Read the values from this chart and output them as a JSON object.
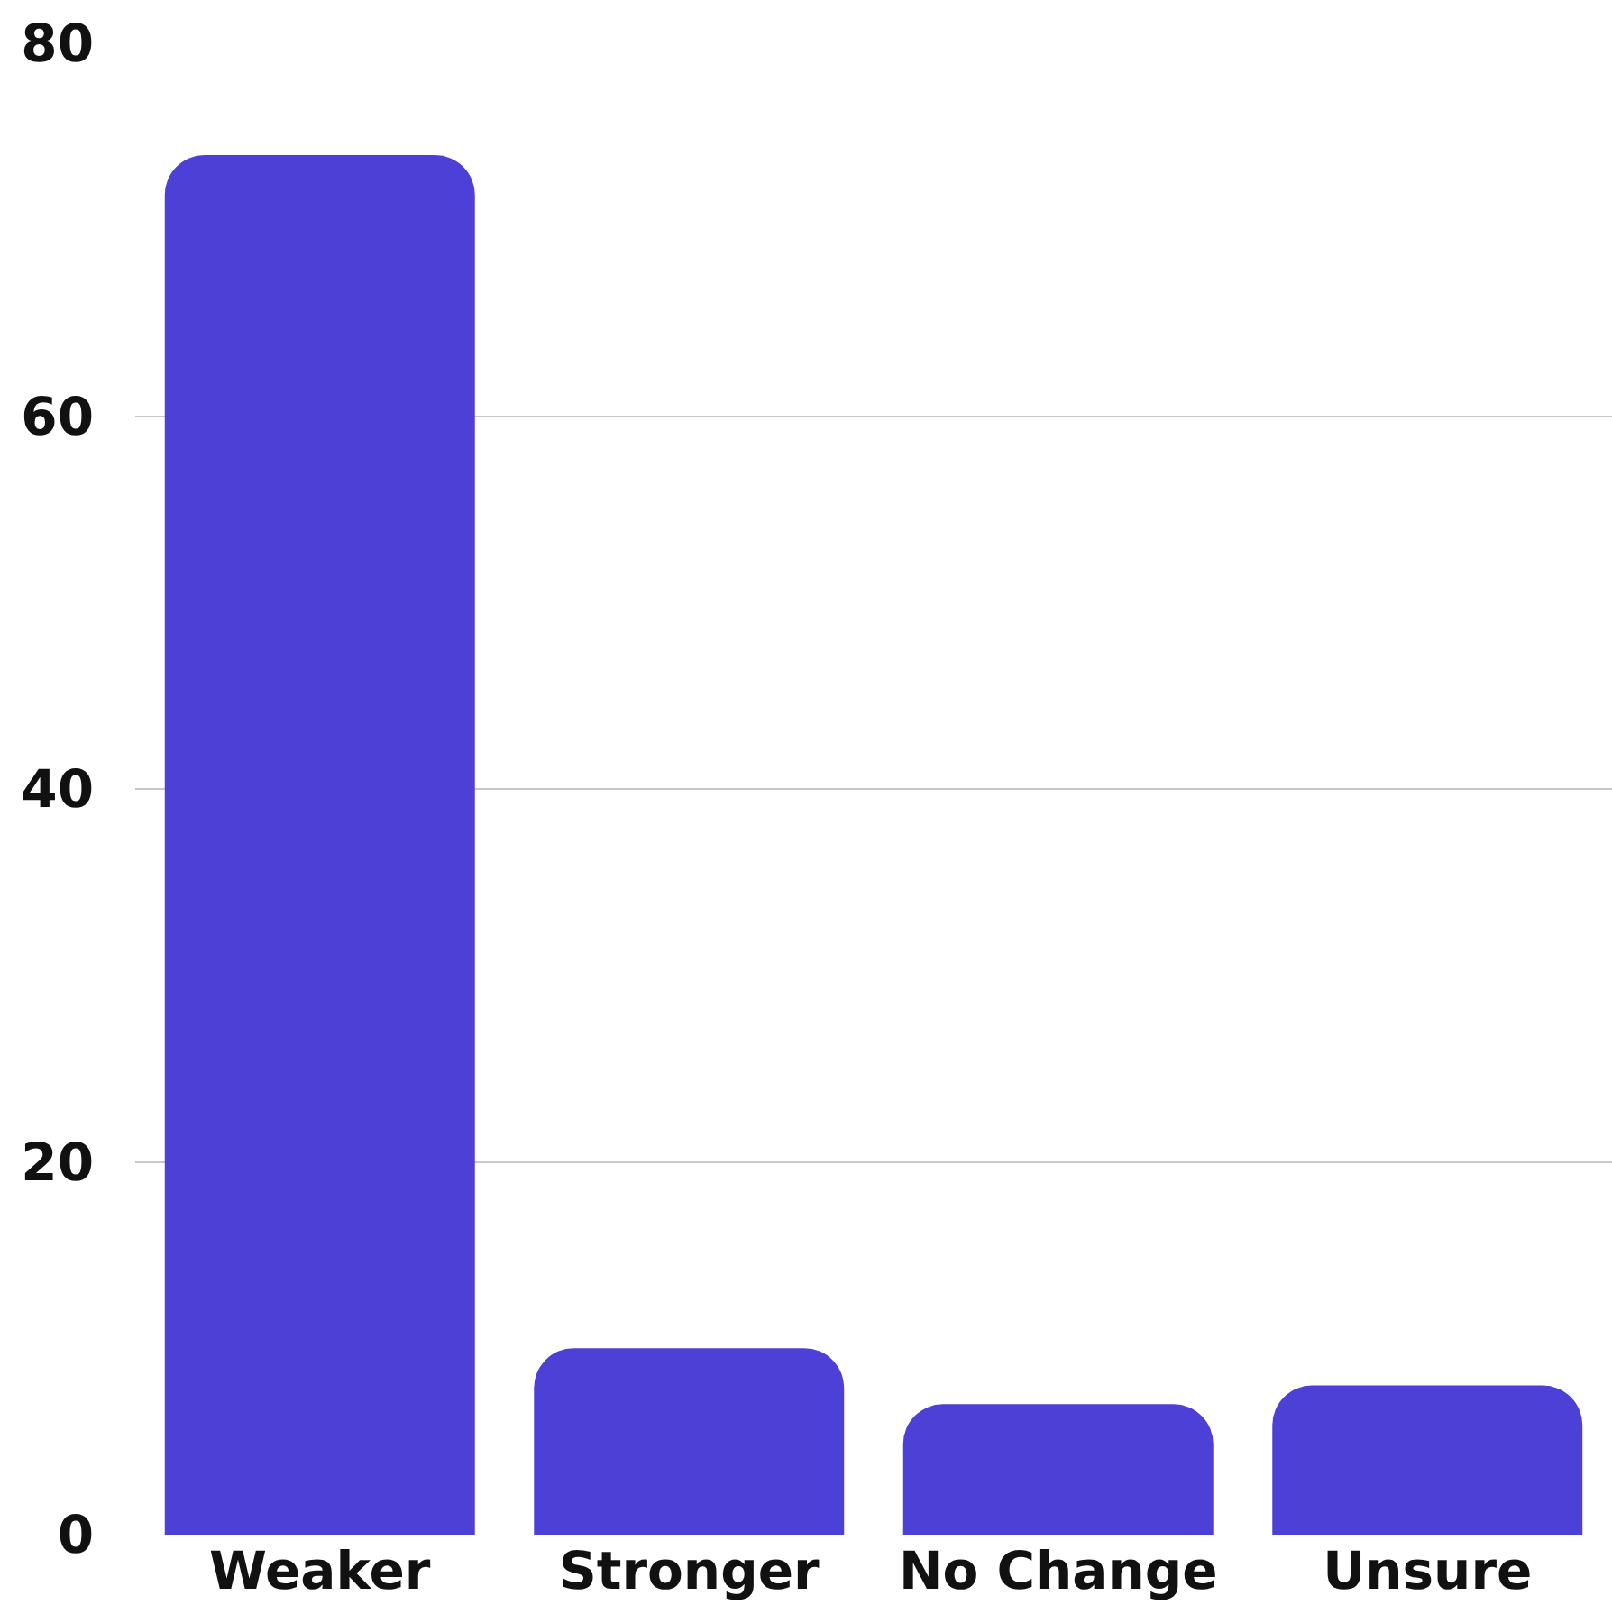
{
  "chart_data": {
    "type": "bar",
    "categories": [
      "Weaker",
      "Stronger",
      "No Change",
      "Unsure"
    ],
    "values": [
      74,
      10,
      7,
      8
    ],
    "color": "#4c40d6",
    "ylim": [
      0,
      80
    ],
    "yticks": [
      0,
      20,
      40,
      60,
      80
    ],
    "grid": "y"
  }
}
